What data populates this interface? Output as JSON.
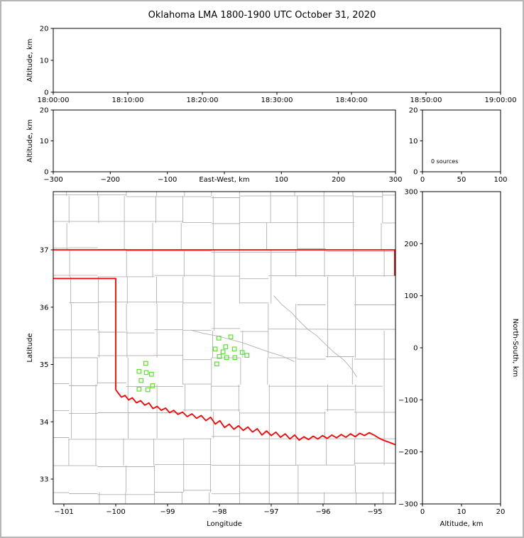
{
  "title": "Oklahoma LMA 1800-1900 UTC October 31, 2020",
  "style": {
    "marker_color": "#58e32c",
    "county_color": "#b0b0b0",
    "state_border_color": "#ff0000",
    "axis_color": "#000000",
    "background": "#ffffff"
  },
  "chart_data": [
    {
      "id": "time_height",
      "type": "scatter",
      "description": "Source altitude vs time (empty - no sources)",
      "ylabel": "Altitude, km",
      "xlim": [
        0,
        3600
      ],
      "ylim": [
        0,
        20
      ],
      "xticks": {
        "values": [
          0,
          600,
          1200,
          1800,
          2400,
          3000,
          3600
        ],
        "labels": [
          "18:00:00",
          "18:10:00",
          "18:20:00",
          "18:30:00",
          "18:40:00",
          "18:50:00",
          "19:00:00"
        ]
      },
      "yticks": {
        "values": [
          0,
          10,
          20
        ],
        "labels": [
          "0",
          "10",
          "20"
        ]
      },
      "points": []
    },
    {
      "id": "ew_height",
      "type": "scatter",
      "description": "Source altitude vs east-west distance (empty - no sources)",
      "xlabel": "East-West, km",
      "xlabel_inline": true,
      "ylabel": "Altitude, km",
      "xlim": [
        -300,
        300
      ],
      "ylim": [
        0,
        20
      ],
      "xticks": {
        "values": [
          -300,
          -200,
          -100,
          0,
          100,
          200,
          300
        ],
        "labels": [
          "−300",
          "−200",
          "−100",
          "",
          "100",
          "200",
          "300"
        ]
      },
      "yticks": {
        "values": [
          0,
          10,
          20
        ],
        "labels": [
          "0",
          "10",
          "20"
        ]
      },
      "points": []
    },
    {
      "id": "alt_histogram",
      "type": "line",
      "description": "Altitude histogram of sources (empty)",
      "annotation": "0 sources",
      "xlim": [
        0,
        100
      ],
      "ylim": [
        0,
        20
      ],
      "xticks": {
        "values": [
          0,
          50,
          100
        ],
        "labels": [
          "0",
          "50",
          "100"
        ]
      },
      "yticks": {
        "values": [
          0,
          10,
          20
        ],
        "labels": [
          "0",
          "10",
          "20"
        ]
      },
      "values": []
    },
    {
      "id": "plan_view",
      "type": "scatter",
      "description": "Plan view map of Oklahoma with LMA station locations",
      "xlabel": "Longitude",
      "ylabel": "Latitude",
      "xlim": [
        -101.205,
        -94.603
      ],
      "ylim": [
        32.567,
        38.016
      ],
      "xticks": {
        "values": [
          -101,
          -100,
          -99,
          -98,
          -97,
          -96,
          -95
        ],
        "labels": [
          "−101",
          "−100",
          "−99",
          "−98",
          "−97",
          "−96",
          "−95"
        ]
      },
      "yticks": {
        "values": [
          33,
          34,
          35,
          36,
          37
        ],
        "labels": [
          "33",
          "34",
          "35",
          "36",
          "37"
        ]
      },
      "marker": "open-square",
      "points_role": "LMA station locations (green squares)",
      "points": [
        [
          -98.01,
          35.46
        ],
        [
          -97.78,
          35.48
        ],
        [
          -98.08,
          35.27
        ],
        [
          -97.88,
          35.31
        ],
        [
          -97.71,
          35.27
        ],
        [
          -98.0,
          35.14
        ],
        [
          -97.86,
          35.12
        ],
        [
          -97.7,
          35.12
        ],
        [
          -98.05,
          35.01
        ],
        [
          -97.56,
          35.21
        ],
        [
          -97.47,
          35.16
        ],
        [
          -97.93,
          35.22
        ],
        [
          -99.42,
          35.02
        ],
        [
          -99.55,
          34.88
        ],
        [
          -99.41,
          34.86
        ],
        [
          -99.31,
          34.83
        ],
        [
          -99.51,
          34.72
        ],
        [
          -99.55,
          34.57
        ],
        [
          -99.38,
          34.56
        ],
        [
          -99.29,
          34.63
        ]
      ]
    },
    {
      "id": "ns_height",
      "type": "scatter",
      "description": "Source altitude vs north-south distance (empty - no sources)",
      "xlabel": "Altitude, km",
      "ylabel_right": "North-South, km",
      "xlim": [
        0,
        20
      ],
      "ylim": [
        -300,
        300
      ],
      "xticks": {
        "values": [
          0,
          10,
          20
        ],
        "labels": [
          "0",
          "10",
          "20"
        ]
      },
      "yticks": {
        "values": [
          -300,
          -200,
          -100,
          0,
          100,
          200,
          300
        ],
        "labels": [
          "−300",
          "−200",
          "−100",
          "0",
          "100",
          "200",
          "300"
        ]
      },
      "points": []
    }
  ],
  "map_overlay": {
    "county_grid": {
      "lon_start": -101.45,
      "lon_end": -94.35,
      "lon_step": 0.55,
      "lat_start": 32.3,
      "lat_end": 38.25,
      "lat_step": 0.47,
      "jitter": 0.1
    },
    "gray_lines": [
      [
        [
          -96.95,
          36.2
        ],
        [
          -96.8,
          36.05
        ],
        [
          -96.6,
          35.9
        ],
        [
          -96.45,
          35.75
        ],
        [
          -96.3,
          35.62
        ],
        [
          -96.12,
          35.5
        ],
        [
          -95.95,
          35.35
        ],
        [
          -95.8,
          35.22
        ],
        [
          -95.6,
          35.08
        ],
        [
          -95.45,
          34.92
        ],
        [
          -95.35,
          34.78
        ]
      ],
      [
        [
          -98.55,
          35.6
        ],
        [
          -98.3,
          35.54
        ],
        [
          -98.05,
          35.5
        ],
        [
          -97.8,
          35.44
        ],
        [
          -97.55,
          35.38
        ],
        [
          -97.3,
          35.3
        ],
        [
          -97.05,
          35.22
        ],
        [
          -96.8,
          35.15
        ],
        [
          -96.55,
          35.05
        ]
      ]
    ],
    "state_border": [
      [
        [
          -101.205,
          37
        ],
        [
          -94.603,
          37
        ]
      ],
      [
        [
          -101.205,
          36.5
        ],
        [
          -100,
          36.5
        ],
        [
          -100,
          34.56
        ]
      ],
      [
        [
          -94.618,
          37
        ],
        [
          -94.618,
          36.55
        ]
      ],
      [
        [
          -100.0,
          34.56
        ],
        [
          -99.95,
          34.5
        ],
        [
          -99.89,
          34.43
        ],
        [
          -99.82,
          34.46
        ],
        [
          -99.75,
          34.38
        ],
        [
          -99.68,
          34.42
        ],
        [
          -99.6,
          34.33
        ],
        [
          -99.52,
          34.37
        ],
        [
          -99.44,
          34.29
        ],
        [
          -99.36,
          34.33
        ],
        [
          -99.28,
          34.23
        ],
        [
          -99.2,
          34.27
        ],
        [
          -99.12,
          34.2
        ],
        [
          -99.04,
          34.24
        ],
        [
          -98.96,
          34.16
        ],
        [
          -98.88,
          34.2
        ],
        [
          -98.8,
          34.13
        ],
        [
          -98.71,
          34.17
        ],
        [
          -98.62,
          34.09
        ],
        [
          -98.53,
          34.14
        ],
        [
          -98.44,
          34.06
        ],
        [
          -98.35,
          34.11
        ],
        [
          -98.26,
          34.02
        ],
        [
          -98.17,
          34.08
        ],
        [
          -98.08,
          33.96
        ],
        [
          -97.99,
          34.02
        ],
        [
          -97.9,
          33.9
        ],
        [
          -97.81,
          33.96
        ],
        [
          -97.72,
          33.87
        ],
        [
          -97.63,
          33.93
        ],
        [
          -97.54,
          33.85
        ],
        [
          -97.45,
          33.91
        ],
        [
          -97.36,
          33.82
        ],
        [
          -97.27,
          33.88
        ],
        [
          -97.18,
          33.77
        ],
        [
          -97.09,
          33.84
        ],
        [
          -97.0,
          33.76
        ],
        [
          -96.91,
          33.82
        ],
        [
          -96.82,
          33.73
        ],
        [
          -96.73,
          33.79
        ],
        [
          -96.64,
          33.7
        ],
        [
          -96.55,
          33.77
        ],
        [
          -96.46,
          33.68
        ],
        [
          -96.37,
          33.74
        ],
        [
          -96.28,
          33.69
        ],
        [
          -96.19,
          33.75
        ],
        [
          -96.1,
          33.7
        ],
        [
          -96.01,
          33.76
        ],
        [
          -95.92,
          33.71
        ],
        [
          -95.83,
          33.77
        ],
        [
          -95.74,
          33.72
        ],
        [
          -95.65,
          33.78
        ],
        [
          -95.56,
          33.73
        ],
        [
          -95.47,
          33.79
        ],
        [
          -95.38,
          33.74
        ],
        [
          -95.29,
          33.8
        ],
        [
          -95.2,
          33.76
        ],
        [
          -95.11,
          33.81
        ],
        [
          -95.02,
          33.77
        ],
        [
          -94.93,
          33.72
        ],
        [
          -94.84,
          33.68
        ],
        [
          -94.75,
          33.65
        ],
        [
          -94.66,
          33.62
        ],
        [
          -94.55,
          33.58
        ]
      ]
    ]
  }
}
